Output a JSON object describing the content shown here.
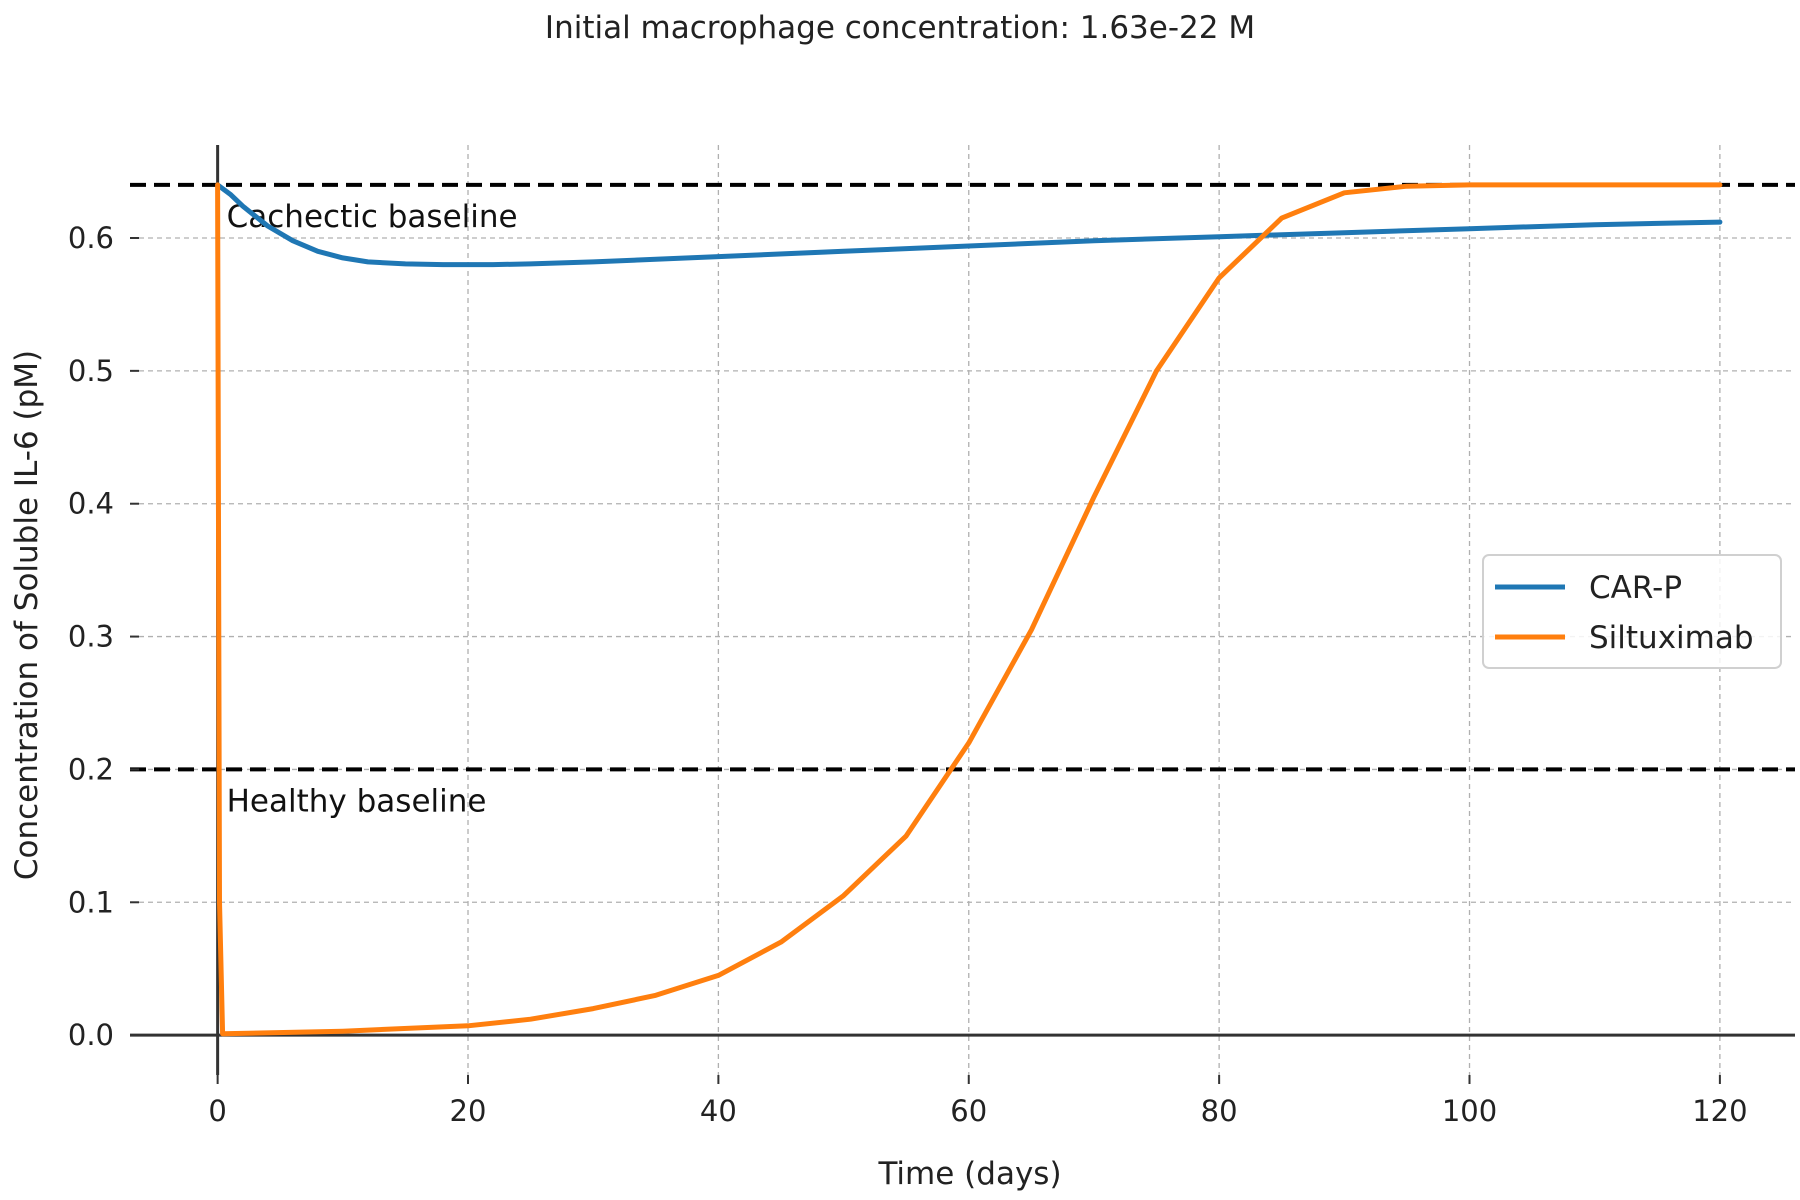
{
  "chart_data": {
    "type": "line",
    "title": "Initial macrophage concentration: 1.63e-22 M",
    "xlabel": "Time (days)",
    "ylabel": "Concentration of Soluble IL-6 (pM)",
    "xlim": [
      -7,
      126
    ],
    "ylim": [
      -0.03,
      0.67
    ],
    "xticks": [
      0,
      20,
      40,
      60,
      80,
      100,
      120
    ],
    "yticks": [
      0.0,
      0.1,
      0.2,
      0.3,
      0.4,
      0.5,
      0.6
    ],
    "xtick_labels": [
      "0",
      "20",
      "40",
      "60",
      "80",
      "100",
      "120"
    ],
    "ytick_labels": [
      "0.0",
      "0.1",
      "0.2",
      "0.3",
      "0.4",
      "0.5",
      "0.6"
    ],
    "grid": true,
    "legend_position": "center-right",
    "series": [
      {
        "name": "CAR-P",
        "color": "#1f77b4",
        "x": [
          0,
          1,
          2,
          4,
          6,
          8,
          10,
          12,
          15,
          18,
          20,
          22,
          25,
          30,
          35,
          40,
          50,
          60,
          70,
          80,
          90,
          100,
          110,
          120
        ],
        "y": [
          0.64,
          0.633,
          0.624,
          0.609,
          0.598,
          0.59,
          0.585,
          0.582,
          0.5805,
          0.58,
          0.58,
          0.58,
          0.5805,
          0.582,
          0.584,
          0.586,
          0.59,
          0.594,
          0.598,
          0.601,
          0.604,
          0.607,
          0.61,
          0.612
        ]
      },
      {
        "name": "Siltuximab",
        "color": "#ff7f0e",
        "x": [
          0,
          0.15,
          0.4,
          10,
          20,
          25,
          30,
          35,
          40,
          45,
          50,
          55,
          60,
          65,
          70,
          75,
          80,
          85,
          90,
          95,
          100,
          110,
          120
        ],
        "y": [
          0.64,
          0.1,
          0.001,
          0.003,
          0.007,
          0.012,
          0.02,
          0.03,
          0.045,
          0.07,
          0.105,
          0.15,
          0.22,
          0.305,
          0.405,
          0.5,
          0.57,
          0.615,
          0.634,
          0.639,
          0.64,
          0.64,
          0.64
        ]
      }
    ],
    "reference_lines": [
      {
        "y": 0.64,
        "label": "Cachectic baseline"
      },
      {
        "y": 0.2,
        "label": "Healthy baseline"
      }
    ]
  }
}
